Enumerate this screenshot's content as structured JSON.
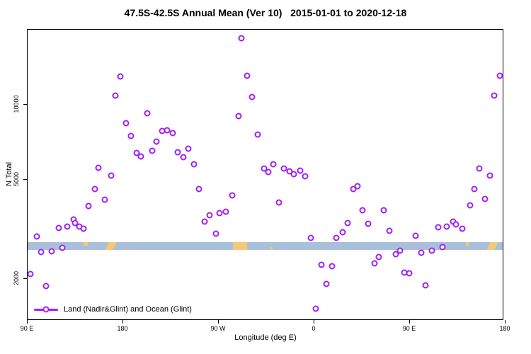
{
  "title": "47.5S-42.5S Annual Mean (Ver 10)   2015-01-01 to 2020-12-18",
  "colors": {
    "point": "#A020F0",
    "ocean_band": "#A9BFDA",
    "land_patch": "#F5C878",
    "axis": "#000000"
  },
  "y_axis": {
    "label": "N Total",
    "ticks": [
      {
        "value": 2000,
        "label": "2000"
      },
      {
        "value": 5000,
        "label": "5000"
      },
      {
        "value": 10000,
        "label": "10000"
      }
    ]
  },
  "x_axis": {
    "label": "Longitude (deg E)",
    "ticks": [
      {
        "lon": 90,
        "label": "90 E"
      },
      {
        "lon": 180,
        "label": "180"
      },
      {
        "lon": 270,
        "label": "90 W"
      },
      {
        "lon": 360,
        "label": "0"
      },
      {
        "lon": 450,
        "label": "90 E"
      },
      {
        "lon": 540,
        "label": "180"
      }
    ]
  },
  "legend": {
    "label": "Land (Nadir&Glint) and Ocean (Glint)"
  },
  "chart_data": {
    "type": "scatter",
    "title": "47.5S-42.5S Annual Mean (Ver 10)   2015-01-01 to 2020-12-18",
    "xlabel": "Longitude (deg E)",
    "ylabel": "N Total",
    "y_scale": "log",
    "x_domain_deg_east": [
      90,
      540
    ],
    "ylim": [
      1400,
      20000
    ],
    "grid": false,
    "legend_position": "bottom-left-inside",
    "band": {
      "description": "ocean/land strip across latitude band",
      "land_segments": [
        {
          "from": 143,
          "to": 147,
          "shape": "top"
        },
        {
          "from": 165,
          "to": 172,
          "shape": "diag"
        },
        {
          "from": 284,
          "to": 297,
          "shape": "full"
        },
        {
          "from": 319,
          "to": 321.5,
          "shape": "bottom"
        },
        {
          "from": 503,
          "to": 506,
          "shape": "top"
        },
        {
          "from": 524.5,
          "to": 531.5,
          "shape": "diag"
        }
      ]
    },
    "points": [
      {
        "lon": 93,
        "n": 2080
      },
      {
        "lon": 99,
        "n": 2940
      },
      {
        "lon": 103,
        "n": 2550
      },
      {
        "lon": 108,
        "n": 1860
      },
      {
        "lon": 113,
        "n": 2570
      },
      {
        "lon": 120,
        "n": 3180
      },
      {
        "lon": 123,
        "n": 2650
      },
      {
        "lon": 128,
        "n": 3230
      },
      {
        "lon": 134,
        "n": 3440
      },
      {
        "lon": 135,
        "n": 3330
      },
      {
        "lon": 139,
        "n": 3230
      },
      {
        "lon": 143,
        "n": 3160
      },
      {
        "lon": 148,
        "n": 3900
      },
      {
        "lon": 154,
        "n": 4560
      },
      {
        "lon": 157,
        "n": 5550
      },
      {
        "lon": 163,
        "n": 4140
      },
      {
        "lon": 169,
        "n": 5170
      },
      {
        "lon": 173,
        "n": 10800
      },
      {
        "lon": 178,
        "n": 12900
      },
      {
        "lon": 183,
        "n": 8400
      },
      {
        "lon": 188,
        "n": 7450
      },
      {
        "lon": 193,
        "n": 6370
      },
      {
        "lon": 197,
        "n": 6160
      },
      {
        "lon": 203,
        "n": 9200
      },
      {
        "lon": 208,
        "n": 6500
      },
      {
        "lon": 212,
        "n": 7070
      },
      {
        "lon": 217,
        "n": 7800
      },
      {
        "lon": 222,
        "n": 7850
      },
      {
        "lon": 227,
        "n": 7650
      },
      {
        "lon": 232,
        "n": 6400
      },
      {
        "lon": 237,
        "n": 6120
      },
      {
        "lon": 242,
        "n": 6620
      },
      {
        "lon": 247,
        "n": 5740
      },
      {
        "lon": 252,
        "n": 4560
      },
      {
        "lon": 257,
        "n": 3380
      },
      {
        "lon": 262,
        "n": 3580
      },
      {
        "lon": 268,
        "n": 3020
      },
      {
        "lon": 271,
        "n": 3650
      },
      {
        "lon": 277,
        "n": 3700
      },
      {
        "lon": 283,
        "n": 4300
      },
      {
        "lon": 289,
        "n": 8950
      },
      {
        "lon": 292,
        "n": 18400
      },
      {
        "lon": 297,
        "n": 13000
      },
      {
        "lon": 302,
        "n": 10700
      },
      {
        "lon": 307,
        "n": 7550
      },
      {
        "lon": 313,
        "n": 5510
      },
      {
        "lon": 317,
        "n": 5340
      },
      {
        "lon": 322,
        "n": 5740
      },
      {
        "lon": 327,
        "n": 4030
      },
      {
        "lon": 332,
        "n": 5510
      },
      {
        "lon": 337,
        "n": 5370
      },
      {
        "lon": 341,
        "n": 5230
      },
      {
        "lon": 347,
        "n": 5410
      },
      {
        "lon": 352,
        "n": 5130
      },
      {
        "lon": 357,
        "n": 2900
      },
      {
        "lon": 362,
        "n": 1510
      },
      {
        "lon": 367,
        "n": 2270
      },
      {
        "lon": 372,
        "n": 1900
      },
      {
        "lon": 377,
        "n": 2240
      },
      {
        "lon": 381,
        "n": 2900
      },
      {
        "lon": 387,
        "n": 3060
      },
      {
        "lon": 392,
        "n": 3330
      },
      {
        "lon": 397,
        "n": 4560
      },
      {
        "lon": 401,
        "n": 4680
      },
      {
        "lon": 406,
        "n": 3750
      },
      {
        "lon": 411,
        "n": 3310
      },
      {
        "lon": 417,
        "n": 2300
      },
      {
        "lon": 421,
        "n": 2430
      },
      {
        "lon": 426,
        "n": 3750
      },
      {
        "lon": 431,
        "n": 3100
      },
      {
        "lon": 437,
        "n": 2500
      },
      {
        "lon": 441,
        "n": 2580
      },
      {
        "lon": 445,
        "n": 2110
      },
      {
        "lon": 450,
        "n": 2090
      },
      {
        "lon": 456,
        "n": 2960
      },
      {
        "lon": 461,
        "n": 2530
      },
      {
        "lon": 465,
        "n": 1870
      },
      {
        "lon": 471,
        "n": 2580
      },
      {
        "lon": 477,
        "n": 3200
      },
      {
        "lon": 481,
        "n": 2670
      },
      {
        "lon": 485,
        "n": 3230
      },
      {
        "lon": 491,
        "n": 3380
      },
      {
        "lon": 494,
        "n": 3290
      },
      {
        "lon": 500,
        "n": 3160
      },
      {
        "lon": 507,
        "n": 3920
      },
      {
        "lon": 511,
        "n": 4560
      },
      {
        "lon": 516,
        "n": 5510
      },
      {
        "lon": 521,
        "n": 4160
      },
      {
        "lon": 526,
        "n": 5170
      },
      {
        "lon": 530,
        "n": 10800
      },
      {
        "lon": 535,
        "n": 13000
      }
    ]
  }
}
